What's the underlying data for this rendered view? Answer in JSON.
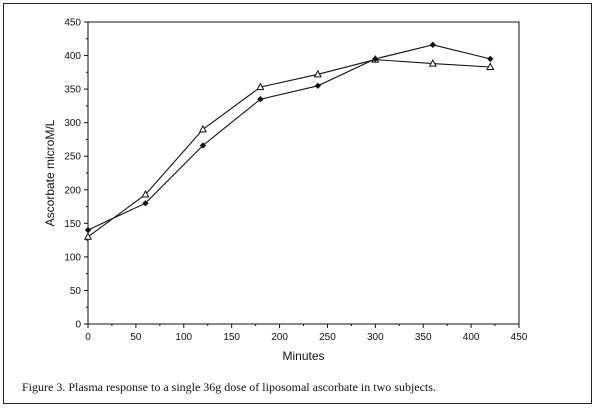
{
  "chart_data": {
    "type": "line",
    "xlabel": "Minutes",
    "ylabel": "Ascorbate microM/L",
    "xlim": [
      0,
      450
    ],
    "ylim": [
      0,
      450
    ],
    "xticks": [
      0,
      50,
      100,
      150,
      200,
      250,
      300,
      350,
      400,
      450
    ],
    "yticks": [
      0,
      50,
      100,
      150,
      200,
      250,
      300,
      350,
      400,
      450
    ],
    "grid": false,
    "series": [
      {
        "marker": "triangle",
        "x": [
          0,
          60,
          120,
          180,
          240,
          300,
          360,
          420
        ],
        "y": [
          130,
          193,
          290,
          353,
          372,
          394,
          388,
          383
        ]
      },
      {
        "marker": "diamond",
        "x": [
          0,
          60,
          120,
          180,
          240,
          300,
          360,
          420
        ],
        "y": [
          140,
          180,
          266,
          335,
          355,
          395,
          416,
          395
        ]
      }
    ]
  },
  "caption": "Figure 3.  Plasma response to a single 36g dose of liposomal ascorbate in two subjects."
}
